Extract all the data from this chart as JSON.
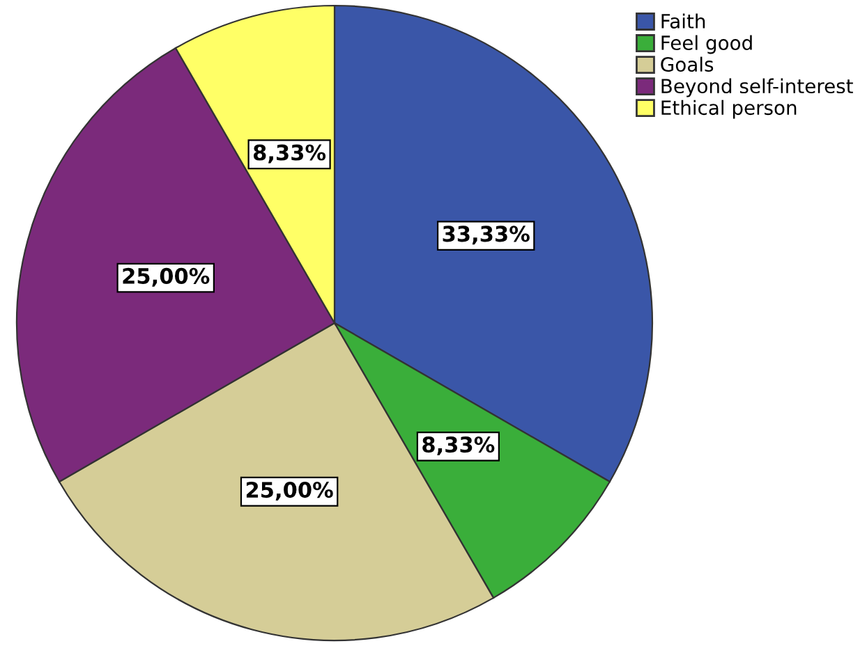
{
  "chart_data": {
    "type": "pie",
    "categories": [
      "Faith",
      "Feel good",
      "Goals",
      "Beyond self-interest",
      "Ethical person"
    ],
    "values": [
      33.33,
      8.33,
      25.0,
      25.0,
      8.33
    ],
    "colors": [
      "#3a56a8",
      "#3aae3a",
      "#d5cd97",
      "#7b2a7b",
      "#ffff66"
    ],
    "value_labels": [
      "33,33%",
      "8,33%",
      "25,00%",
      "25,00%",
      "8,33%"
    ],
    "legend": "top right"
  }
}
